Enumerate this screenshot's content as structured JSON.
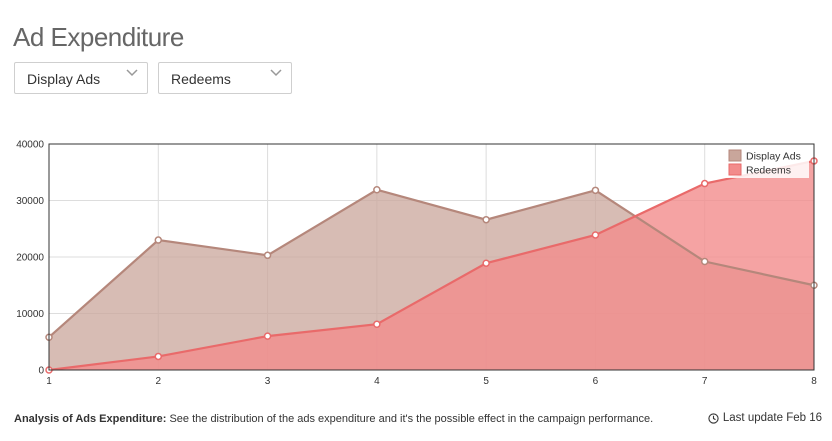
{
  "header": {
    "title": "Ad Expenditure"
  },
  "filters": {
    "metric1": {
      "selected": "Display Ads"
    },
    "metric2": {
      "selected": "Redeems"
    }
  },
  "colors": {
    "display_stroke": "#b5877b",
    "display_fill": "#c9a69b",
    "redeems_stroke": "#e96a6a",
    "redeems_fill": "#f28c8c",
    "grid": "#dddddd",
    "axis": "#333333"
  },
  "chart_data": {
    "type": "area",
    "x": [
      1,
      2,
      3,
      4,
      5,
      6,
      7,
      8
    ],
    "series": [
      {
        "name": "Display Ads",
        "values": [
          5800,
          23000,
          20300,
          31900,
          26600,
          31800,
          19200,
          15000
        ]
      },
      {
        "name": "Redeems",
        "values": [
          0,
          2400,
          6000,
          8100,
          18900,
          23900,
          33000,
          37000
        ]
      }
    ],
    "title": "",
    "xlabel": "",
    "ylabel": "",
    "xlim": [
      1,
      8
    ],
    "ylim": [
      0,
      40000
    ],
    "yticks": [
      0,
      10000,
      20000,
      30000,
      40000
    ],
    "grid": true,
    "legend": "top-right"
  },
  "footer": {
    "label": "Analysis of Ads Expenditure:",
    "text": " See the distribution of the ads expenditure and it's the possible effect in the campaign performance.",
    "updated": "Last update Feb 16",
    "clock_icon": "clock-icon"
  }
}
